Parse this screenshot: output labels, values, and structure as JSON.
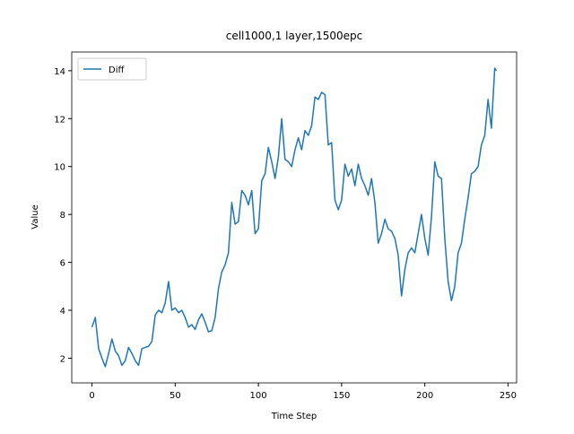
{
  "chart_data": {
    "type": "line",
    "title": "cell1000,1 layer,1500epc",
    "x_label": "Time Step",
    "y_label": "Value",
    "x": [
      0,
      2,
      4,
      6,
      8,
      10,
      12,
      14,
      16,
      18,
      20,
      22,
      24,
      26,
      28,
      30,
      32,
      34,
      36,
      38,
      40,
      42,
      44,
      46,
      48,
      50,
      52,
      54,
      56,
      58,
      60,
      62,
      64,
      66,
      68,
      70,
      72,
      74,
      76,
      78,
      80,
      82,
      84,
      86,
      88,
      90,
      92,
      94,
      96,
      98,
      100,
      102,
      104,
      106,
      108,
      110,
      112,
      114,
      116,
      118,
      120,
      122,
      124,
      126,
      128,
      130,
      132,
      134,
      136,
      138,
      140,
      142,
      144,
      146,
      148,
      150,
      152,
      154,
      156,
      158,
      160,
      162,
      164,
      166,
      168,
      170,
      172,
      174,
      176,
      178,
      180,
      182,
      184,
      186,
      188,
      190,
      192,
      194,
      196,
      198,
      200,
      202,
      204,
      206,
      208,
      210,
      212,
      214,
      216,
      218,
      220,
      222,
      224,
      226,
      228,
      230,
      232,
      234,
      236,
      238,
      240,
      242,
      243
    ],
    "series": [
      {
        "name": "Diff",
        "color": "#1f77b4",
        "values": [
          3.3,
          3.7,
          2.4,
          2.0,
          1.65,
          2.2,
          2.8,
          2.3,
          2.1,
          1.7,
          1.9,
          2.45,
          2.2,
          1.9,
          1.7,
          2.4,
          2.45,
          2.5,
          2.7,
          3.8,
          4.0,
          3.9,
          4.3,
          5.2,
          4.0,
          4.1,
          3.9,
          4.0,
          3.7,
          3.3,
          3.4,
          3.2,
          3.6,
          3.85,
          3.5,
          3.1,
          3.15,
          3.7,
          4.9,
          5.6,
          5.9,
          6.4,
          8.5,
          7.6,
          7.7,
          9.0,
          8.8,
          8.4,
          9.0,
          7.2,
          7.4,
          9.4,
          9.7,
          10.8,
          10.2,
          9.5,
          10.4,
          12.0,
          10.3,
          10.2,
          10.0,
          10.7,
          11.2,
          10.7,
          11.5,
          11.3,
          11.7,
          12.9,
          12.8,
          13.1,
          13.0,
          10.9,
          11.0,
          8.6,
          8.2,
          8.6,
          10.1,
          9.6,
          9.9,
          9.2,
          10.1,
          9.5,
          9.2,
          8.8,
          9.5,
          8.5,
          6.8,
          7.2,
          7.8,
          7.4,
          7.3,
          7.0,
          6.3,
          4.6,
          5.7,
          6.4,
          6.6,
          6.4,
          7.2,
          8.0,
          7.0,
          6.3,
          7.9,
          10.2,
          9.6,
          9.5,
          7.0,
          5.2,
          4.4,
          5.0,
          6.4,
          6.8,
          7.8,
          8.7,
          9.7,
          9.8,
          10.0,
          10.9,
          11.3,
          12.8,
          11.6,
          14.1,
          14.0
        ]
      }
    ],
    "xlim": [
      -12.15,
      255.15
    ],
    "ylim": [
      0.97,
      14.78
    ],
    "xticks": [
      0,
      50,
      100,
      150,
      200,
      250
    ],
    "yticks": [
      2,
      4,
      6,
      8,
      10,
      12,
      14
    ],
    "legend": "upper left"
  }
}
